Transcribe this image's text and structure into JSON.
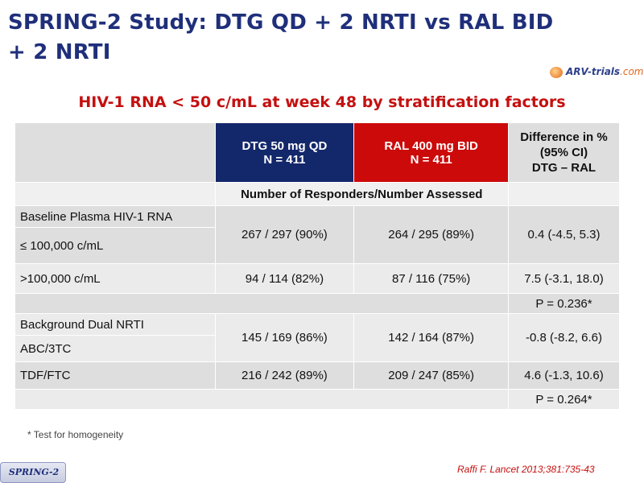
{
  "title_line1": "SPRING-2 Study: DTG QD + 2 NRTI vs RAL BID",
  "title_line2": "+ 2 NRTI",
  "logo": {
    "brand": "ARV-trials",
    "suffix": ".com"
  },
  "subtitle": "HIV-1 RNA < 50 c/mL at week 48 by stratification factors",
  "table": {
    "header": {
      "dtg": [
        "DTG 50 mg QD",
        "N = 411"
      ],
      "ral": [
        "RAL 400 mg BID",
        "N = 411"
      ],
      "diff": [
        "Difference in %",
        "(95% CI)",
        "DTG – RAL"
      ]
    },
    "subheader": "Number of Responders/Number Assessed",
    "section1_label": "Baseline Plasma HIV-1 RNA",
    "rows1": [
      {
        "label": "≤ 100,000 c/mL",
        "dtg": "267 / 297 (90%)",
        "ral": "264 / 295 (89%)",
        "diff": "0.4 (-4.5, 5.3)"
      },
      {
        "label": ">100,000 c/mL",
        "dtg": "94 / 114 (82%)",
        "ral": "87 / 116 (75%)",
        "diff": "7.5 (-3.1, 18.0)"
      }
    ],
    "p1": "P = 0.236*",
    "section2_label": "Background Dual NRTI",
    "rows2": [
      {
        "label": "ABC/3TC",
        "dtg": "145 / 169 (86%)",
        "ral": "142 / 164 (87%)",
        "diff": "-0.8 (-8.2, 6.6)"
      },
      {
        "label": "TDF/FTC",
        "dtg": "216 / 242 (89%)",
        "ral": "209 / 247 (85%)",
        "diff": "4.6 (-1.3, 10.6)"
      }
    ],
    "p2": "P = 0.264*"
  },
  "footnote": "* Test for homogeneity",
  "reference": "Raffi F. Lancet 2013;381:735-43",
  "badge": "SPRING-2"
}
